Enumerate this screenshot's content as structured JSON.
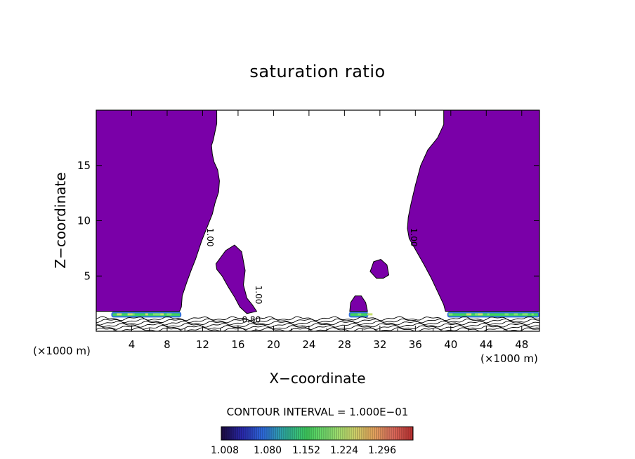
{
  "figure": {
    "title": "saturation ratio",
    "xlabel": "X−coordinate",
    "ylabel": "Z−coordinate",
    "x_unit_left": "(×1000 m)",
    "x_unit_right": "(×1000 m)",
    "contour_interval": "CONTOUR INTERVAL = 1.000E−01"
  },
  "colorbar": {
    "labels": [
      "1.008",
      "1.080",
      "1.152",
      "1.224",
      "1.296"
    ],
    "colors": [
      "#1c0a40",
      "#2a2ab0",
      "#2f6fe0",
      "#30b0a0",
      "#40d060",
      "#7fe070",
      "#c8e070",
      "#e8b060",
      "#e07060",
      "#c03030"
    ]
  },
  "chart_data": {
    "type": "heatmap",
    "title": "saturation ratio",
    "xlabel": "X−coordinate",
    "ylabel": "Z−coordinate",
    "x_ticks": [
      "4",
      "8",
      "12",
      "16",
      "20",
      "24",
      "28",
      "32",
      "36",
      "40",
      "44",
      "48"
    ],
    "y_ticks": [
      "5",
      "10",
      "15"
    ],
    "xlim": [
      0,
      50
    ],
    "ylim": [
      0,
      20
    ],
    "fill_color": "#7a00a8",
    "contour_labels": [
      {
        "text": "1.00",
        "x": 12.5,
        "z": 8.5
      },
      {
        "text": "1.00",
        "x": 35.5,
        "z": 8.5
      },
      {
        "text": "1.00",
        "x": 18.0,
        "z": 3.3
      },
      {
        "text": "0.80",
        "x": 17.5,
        "z": 0.8
      }
    ],
    "regions": [
      {
        "name": "left-saturated-region",
        "points": [
          [
            0,
            20
          ],
          [
            13.6,
            20
          ],
          [
            13.6,
            18.8
          ],
          [
            13.2,
            17.3
          ],
          [
            13.0,
            16.8
          ],
          [
            13.1,
            16.0
          ],
          [
            13.3,
            15.3
          ],
          [
            13.7,
            14.6
          ],
          [
            13.9,
            13.6
          ],
          [
            13.8,
            12.6
          ],
          [
            13.4,
            11.6
          ],
          [
            13.1,
            10.6
          ],
          [
            12.7,
            9.8
          ],
          [
            12.3,
            9.0
          ],
          [
            11.9,
            8.2
          ],
          [
            11.2,
            6.5
          ],
          [
            10.7,
            5.5
          ],
          [
            10.2,
            4.4
          ],
          [
            9.7,
            3.2
          ],
          [
            9.6,
            2.2
          ],
          [
            9.4,
            1.8
          ],
          [
            0,
            1.8
          ]
        ]
      },
      {
        "name": "right-saturated-region",
        "points": [
          [
            50,
            20
          ],
          [
            39.2,
            20
          ],
          [
            39.2,
            18.7
          ],
          [
            38.5,
            17.5
          ],
          [
            37.4,
            16.4
          ],
          [
            36.6,
            15.0
          ],
          [
            36.0,
            13.2
          ],
          [
            35.5,
            11.5
          ],
          [
            35.2,
            10.3
          ],
          [
            35.1,
            9.3
          ],
          [
            35.3,
            8.4
          ],
          [
            36.0,
            7.4
          ],
          [
            37.0,
            6.0
          ],
          [
            37.8,
            4.8
          ],
          [
            38.5,
            3.6
          ],
          [
            39.2,
            2.4
          ],
          [
            39.4,
            1.8
          ],
          [
            50,
            1.8
          ]
        ]
      },
      {
        "name": "mid-cloud-1",
        "points": [
          [
            13.5,
            6.1
          ],
          [
            14.6,
            7.3
          ],
          [
            15.6,
            7.8
          ],
          [
            16.4,
            7.2
          ],
          [
            16.8,
            5.5
          ],
          [
            16.6,
            4.2
          ],
          [
            17.0,
            3.0
          ],
          [
            17.6,
            2.4
          ],
          [
            18.1,
            1.8
          ],
          [
            17.0,
            1.6
          ],
          [
            16.2,
            2.2
          ],
          [
            15.6,
            3.1
          ],
          [
            14.9,
            4.0
          ],
          [
            14.2,
            5.0
          ],
          [
            13.6,
            5.6
          ]
        ]
      },
      {
        "name": "mid-cloud-2",
        "points": [
          [
            28.6,
            1.8
          ],
          [
            28.7,
            2.6
          ],
          [
            29.2,
            3.2
          ],
          [
            29.9,
            3.2
          ],
          [
            30.4,
            2.6
          ],
          [
            30.6,
            1.8
          ]
        ]
      },
      {
        "name": "mid-cloud-3",
        "points": [
          [
            30.9,
            5.4
          ],
          [
            31.3,
            6.3
          ],
          [
            32.1,
            6.5
          ],
          [
            32.8,
            6.0
          ],
          [
            33.0,
            5.1
          ],
          [
            32.4,
            4.8
          ],
          [
            31.6,
            4.8
          ]
        ]
      }
    ],
    "bright_bands": [
      {
        "x0": 1.7,
        "x1": 9.6,
        "z": 1.5
      },
      {
        "x0": 28.5,
        "x1": 30.7,
        "z": 1.5
      },
      {
        "x0": 39.6,
        "x1": 50.0,
        "z": 1.5
      }
    ]
  }
}
